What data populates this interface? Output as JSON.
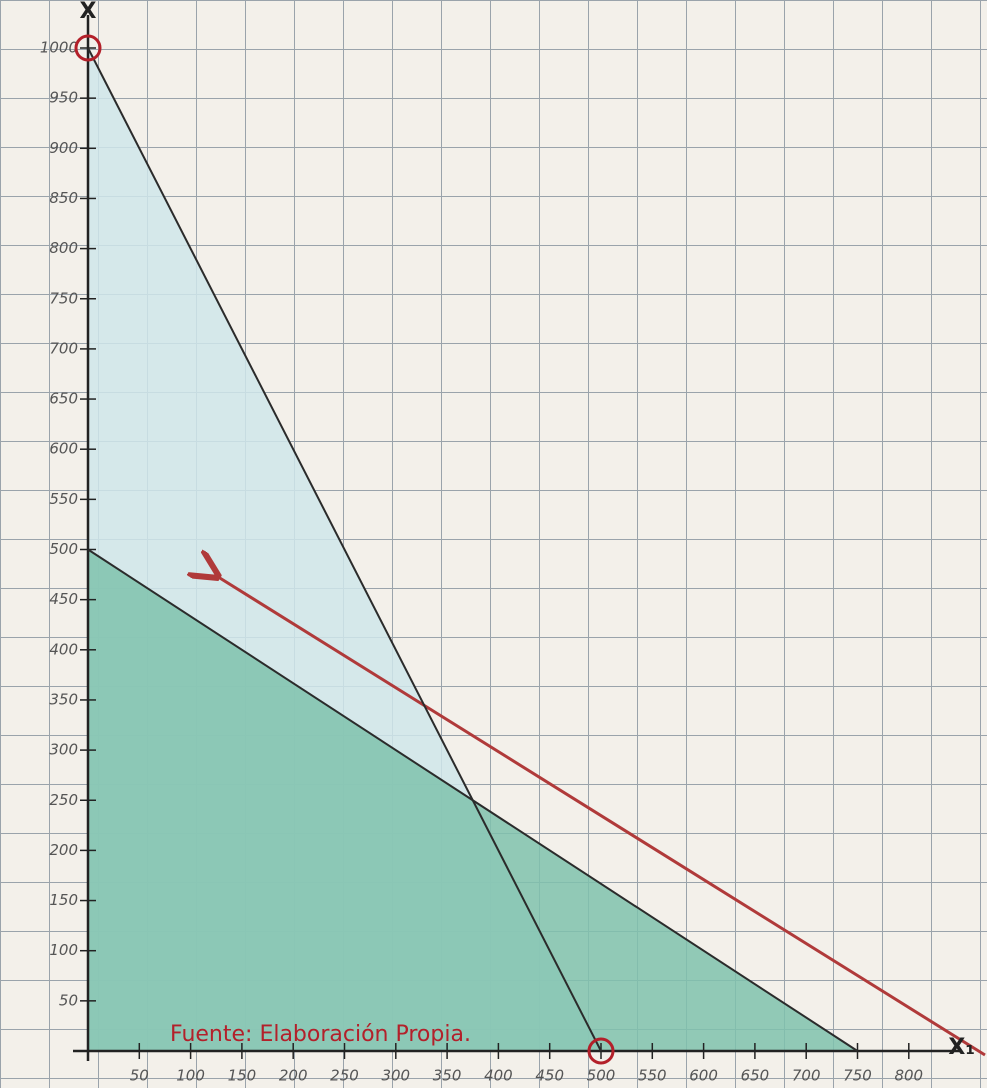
{
  "chart_data": {
    "type": "line",
    "x_label": "X₁",
    "y_label": "X",
    "annotation": "Fuente:  Elaboración Propia.",
    "series": [
      {
        "x": [
          0,
          500
        ],
        "values": [
          1000,
          0
        ],
        "color": "#2b2b2b",
        "fill": "#cfe6ea"
      },
      {
        "x": [
          0,
          750
        ],
        "values": [
          500,
          0
        ],
        "color": "#2b2b2b",
        "fill": "#7fc2ad"
      }
    ],
    "xlim": [
      0,
      850
    ],
    "ylim": [
      0,
      1000
    ],
    "xticks": [
      50,
      100,
      150,
      200,
      250,
      300,
      350,
      400,
      450,
      500,
      550,
      600,
      650,
      700,
      750,
      800
    ],
    "yticks": [
      50,
      100,
      150,
      200,
      250,
      300,
      350,
      400,
      450,
      500,
      550,
      600,
      650,
      700,
      750,
      800,
      850,
      900,
      950,
      1000
    ]
  }
}
